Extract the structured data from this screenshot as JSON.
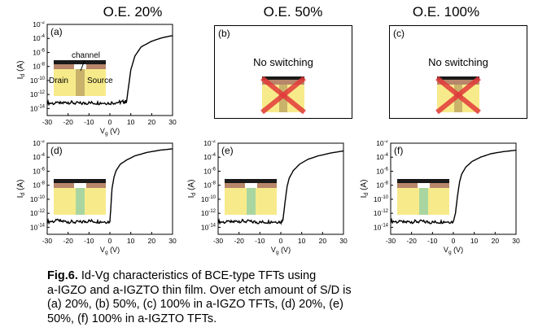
{
  "columns": [
    "O.E. 20%",
    "O.E. 50%",
    "O.E. 100%"
  ],
  "inset_labels": {
    "channel": "channel",
    "drain": "Drain",
    "source": "Source"
  },
  "caption": {
    "fig_label": "Fig.6.",
    "line1_rest": "Id-Vg characteristics of BCE-type TFTs using",
    "line2": "a-IGZO and a-IGZTO thin film. Over etch amount of S/D is",
    "line3": "(a) 20%, (b) 50%, (c) 100% in a-IGZO TFTs, (d) 20%, (e)",
    "line4": "50%, (f) 100% in a-IGZTO TFTs."
  },
  "colors": {
    "curve": "#000000",
    "layer_dark": "#1a1a1a",
    "layer_brown": "#b8866a",
    "layer_yellow": "#f7ea8a",
    "channel_green": "#a9d6a0",
    "cross_red": "#e23a3a"
  },
  "chart_data": [
    {
      "panel": "a",
      "type": "line",
      "xlabel": "Vg (V)",
      "ylabel": "Id (A)",
      "xticks": [
        -30,
        -20,
        -10,
        0,
        10,
        20,
        30
      ],
      "yticks_exp": [
        -2,
        -4,
        -6,
        -8,
        -10,
        -12,
        -14
      ],
      "xlim": [
        -30,
        30
      ],
      "ylim_exp": [
        -15,
        -2
      ],
      "log_y": true,
      "x": [
        -30,
        -25,
        -20,
        -15,
        -10,
        -5,
        0,
        5,
        8,
        10,
        12,
        15,
        20,
        25,
        30
      ],
      "log10_y": [
        -13.2,
        -13.3,
        -13.1,
        -13.3,
        -13.2,
        -13.2,
        -13.2,
        -13.1,
        -13.0,
        -8.5,
        -6.5,
        -5.2,
        -4.4,
        -3.9,
        -3.6
      ],
      "annotations": [
        "(a)"
      ]
    },
    {
      "panel": "b",
      "type": "text",
      "annotations": [
        "(b)",
        "No switching"
      ]
    },
    {
      "panel": "c",
      "type": "text",
      "annotations": [
        "(c)",
        "No switching"
      ]
    },
    {
      "panel": "d",
      "type": "line",
      "xlabel": "Vg (V)",
      "ylabel": "Id (A)",
      "xticks": [
        -30,
        -20,
        -10,
        0,
        10,
        20,
        30
      ],
      "yticks_exp": [
        -2,
        -4,
        -6,
        -8,
        -10,
        -12,
        -14
      ],
      "xlim": [
        -30,
        30
      ],
      "ylim_exp": [
        -15,
        -2
      ],
      "log_y": true,
      "x": [
        -30,
        -25,
        -20,
        -15,
        -10,
        -5,
        0,
        0.5,
        1,
        2,
        3,
        5,
        8,
        12,
        18,
        24,
        30
      ],
      "log10_y": [
        -13.2,
        -13.1,
        -13.2,
        -13.3,
        -13.1,
        -13.2,
        -13.2,
        -11.0,
        -8.5,
        -6.8,
        -5.9,
        -5.0,
        -4.4,
        -3.8,
        -3.3,
        -3.0,
        -2.8
      ],
      "annotations": [
        "(d)"
      ]
    },
    {
      "panel": "e",
      "type": "line",
      "xlabel": "Vg (V)",
      "ylabel": "Id (A)",
      "xticks": [
        -30,
        -20,
        -10,
        0,
        10,
        20,
        30
      ],
      "yticks_exp": [
        -2,
        -4,
        -6,
        -8,
        -10,
        -12,
        -14
      ],
      "xlim": [
        -30,
        30
      ],
      "ylim_exp": [
        -15,
        -2
      ],
      "log_y": true,
      "x": [
        -30,
        -25,
        -20,
        -15,
        -10,
        -5,
        0,
        1,
        2,
        3,
        4,
        6,
        9,
        13,
        18,
        24,
        30
      ],
      "log10_y": [
        -13.2,
        -13.3,
        -13.1,
        -13.2,
        -13.3,
        -13.2,
        -13.2,
        -13.0,
        -10.5,
        -8.2,
        -7.0,
        -5.9,
        -5.0,
        -4.3,
        -3.8,
        -3.4,
        -3.1
      ],
      "annotations": [
        "(e)"
      ]
    },
    {
      "panel": "f",
      "type": "line",
      "xlabel": "Vg (V)",
      "ylabel": "Id (A)",
      "xticks": [
        -30,
        -20,
        -10,
        0,
        10,
        20,
        30
      ],
      "yticks_exp": [
        -2,
        -4,
        -6,
        -8,
        -10,
        -12,
        -14
      ],
      "xlim": [
        -30,
        30
      ],
      "ylim_exp": [
        -15,
        -2
      ],
      "log_y": true,
      "x": [
        -30,
        -25,
        -20,
        -15,
        -10,
        -5,
        0,
        1,
        2,
        3,
        4,
        6,
        9,
        13,
        18,
        24,
        30
      ],
      "log10_y": [
        -13.1,
        -13.3,
        -13.2,
        -13.2,
        -13.3,
        -13.2,
        -13.2,
        -12.0,
        -9.5,
        -7.5,
        -6.4,
        -5.4,
        -4.6,
        -4.0,
        -3.5,
        -3.2,
        -3.0
      ],
      "annotations": [
        "(f)"
      ]
    }
  ]
}
